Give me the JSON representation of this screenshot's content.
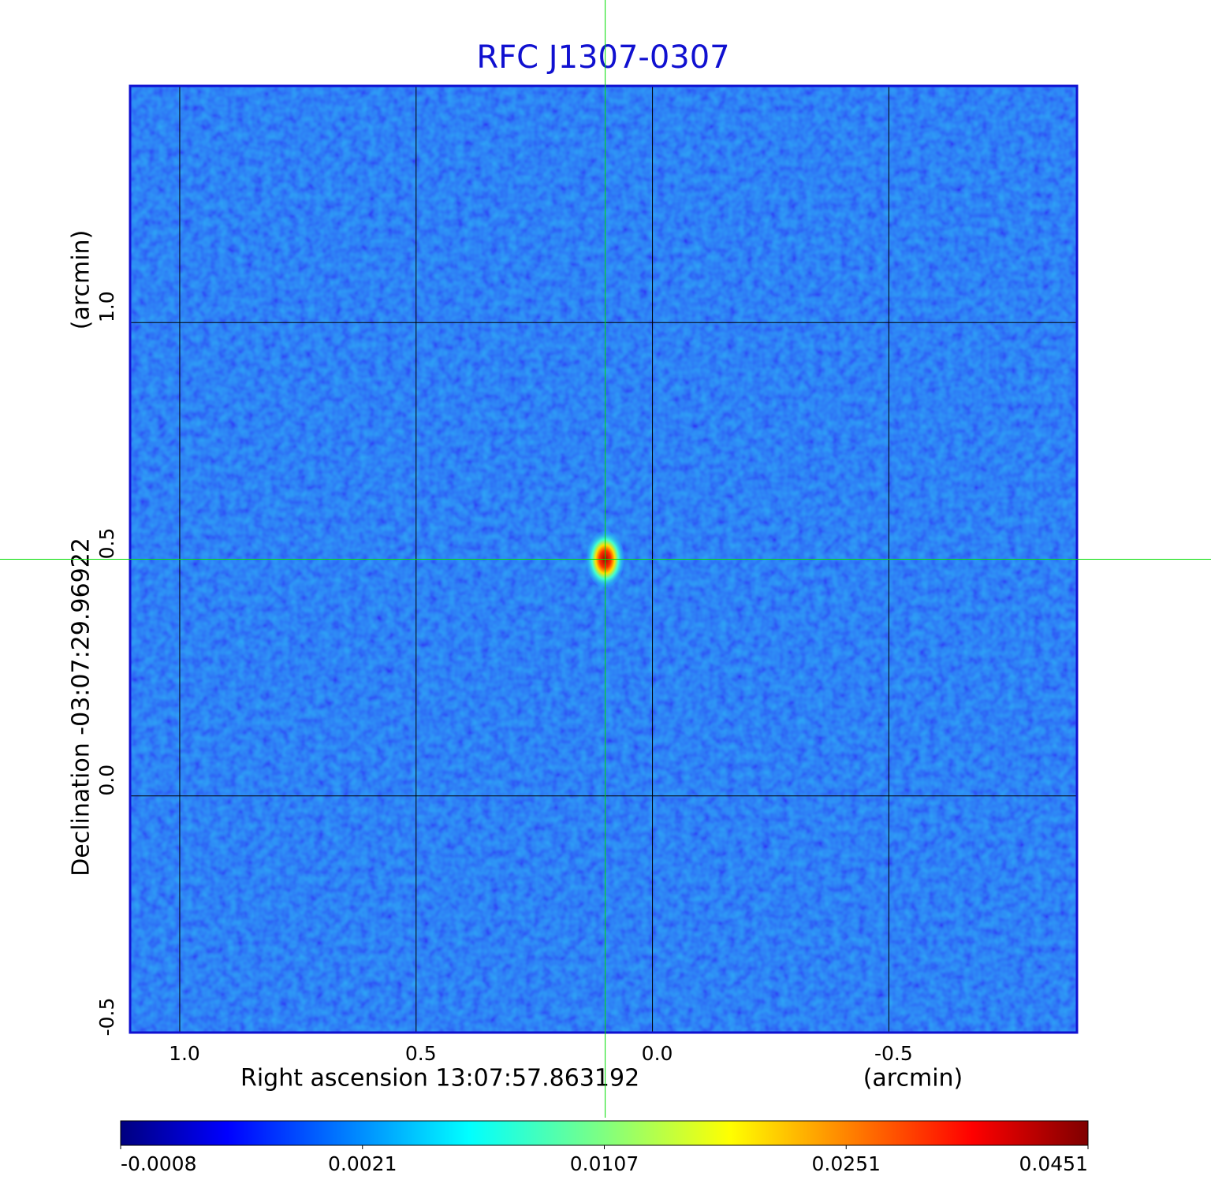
{
  "chart_data": {
    "type": "image",
    "title": "RFC J1307-0307",
    "xlabel": "Right ascension  13:07:57.863192",
    "xunit": "(arcmin)",
    "ylabel": "Declination  -03:07:29.96922",
    "yunit": "(arcmin)",
    "xlim": [
      1.105,
      -0.898
    ],
    "ylim": [
      -0.5,
      1.5
    ],
    "xticks": [
      {
        "value": 1,
        "label": "1.0"
      },
      0.5,
      {
        "value": 0,
        "label": "0.0"
      },
      -0.5
    ],
    "yticks": [
      -0.5,
      {
        "value": 0,
        "label": "0.0"
      },
      0.5,
      {
        "value": 1,
        "label": "1.0"
      }
    ],
    "grid": true,
    "colormap": "jet",
    "colorbar_ticks": [
      -0.0008,
      0.0021,
      0.0107,
      0.0251,
      0.0451
    ],
    "peak": {
      "x": 0.1,
      "y": 0.5,
      "value": 0.0451
    },
    "crosshair_color": "#00dd00"
  }
}
